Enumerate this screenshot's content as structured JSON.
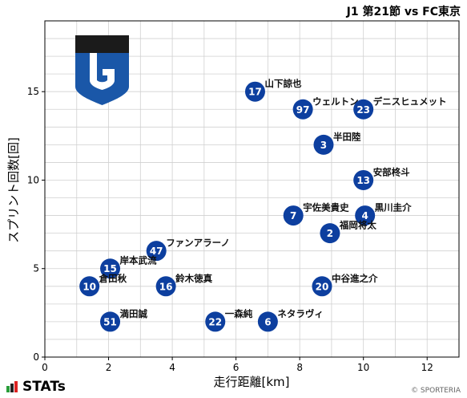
{
  "title": "J1 第21節 vs FC東京",
  "footer": {
    "brand": "STATs",
    "copyright": "© SPORTERIA"
  },
  "colors": {
    "marker": "#0d3f9f",
    "marker_text": "#ffffff",
    "grid": "#d0d0d0",
    "crest_blue": "#1a57a8",
    "crest_dark": "#1b1b1b"
  },
  "chart_data": {
    "type": "scatter",
    "xlabel": "走行距離[km]",
    "ylabel": "スプリント回数[回]",
    "xlim": [
      0,
      13
    ],
    "ylim": [
      0,
      19
    ],
    "xticks": [
      0,
      2,
      4,
      6,
      8,
      10,
      12
    ],
    "yticks": [
      0,
      5,
      10,
      15
    ],
    "grid": true,
    "points": [
      {
        "number": "17",
        "name": "山下諒也",
        "x": 6.6,
        "y": 15.0
      },
      {
        "number": "97",
        "name": "ウェルトン",
        "x": 8.1,
        "y": 14.0
      },
      {
        "number": "23",
        "name": "デニスヒュメット",
        "x": 10.0,
        "y": 14.0
      },
      {
        "number": "3",
        "name": "半田陸",
        "x": 8.75,
        "y": 12.0
      },
      {
        "number": "13",
        "name": "安部柊斗",
        "x": 10.0,
        "y": 10.0
      },
      {
        "number": "7",
        "name": "宇佐美貴史",
        "x": 7.8,
        "y": 8.0
      },
      {
        "number": "4",
        "name": "黒川圭介",
        "x": 10.05,
        "y": 8.0
      },
      {
        "number": "2",
        "name": "福岡将太",
        "x": 8.95,
        "y": 7.0
      },
      {
        "number": "47",
        "name": "ファンアラーノ",
        "x": 3.5,
        "y": 6.0
      },
      {
        "number": "15",
        "name": "岸本武流",
        "x": 2.05,
        "y": 5.0
      },
      {
        "number": "10",
        "name": "倉田秋",
        "x": 1.4,
        "y": 4.0
      },
      {
        "number": "16",
        "name": "鈴木徳真",
        "x": 3.8,
        "y": 4.0
      },
      {
        "number": "20",
        "name": "中谷進之介",
        "x": 8.7,
        "y": 4.0
      },
      {
        "number": "51",
        "name": "満田誠",
        "x": 2.05,
        "y": 2.0
      },
      {
        "number": "22",
        "name": "一森純",
        "x": 5.35,
        "y": 2.0
      },
      {
        "number": "6",
        "name": "ネタラヴィ",
        "x": 7.0,
        "y": 2.0
      }
    ]
  }
}
